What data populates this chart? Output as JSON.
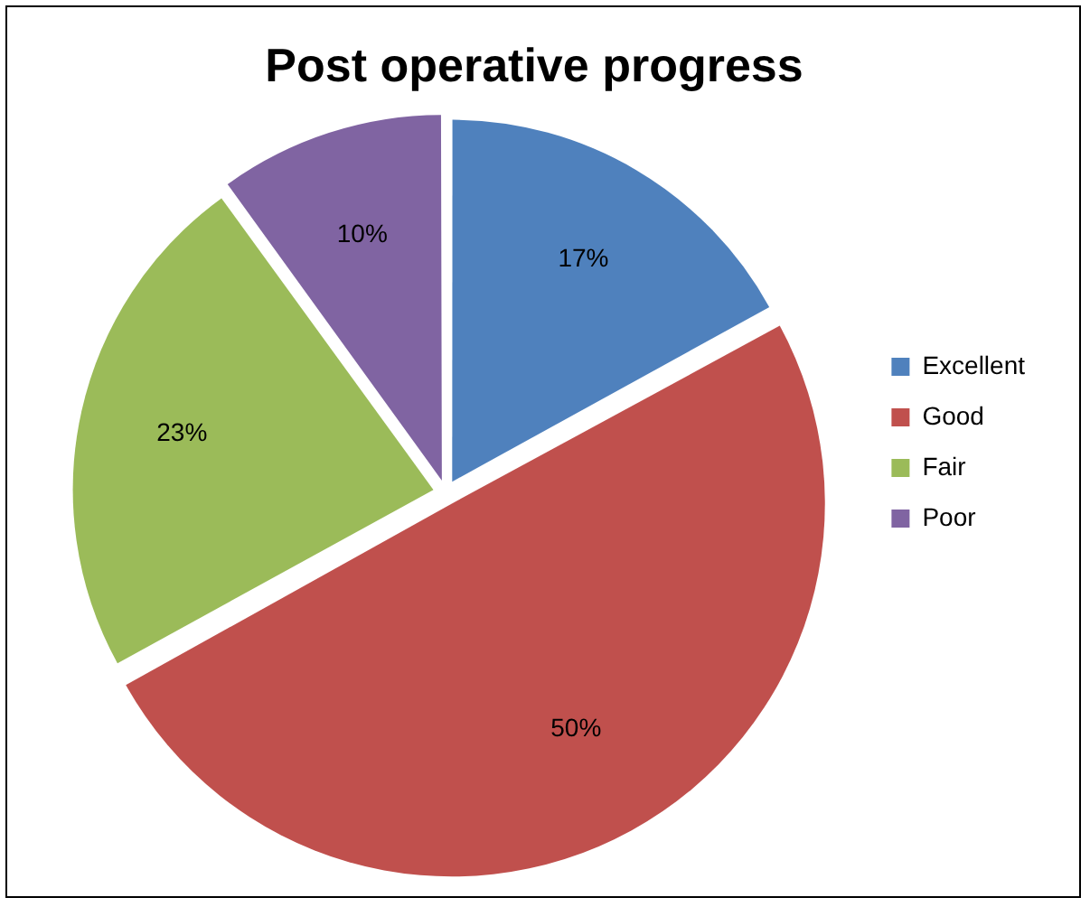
{
  "chart_data": {
    "type": "pie",
    "title": "Post operative progress",
    "categories": [
      "Excellent",
      "Good",
      "Fair",
      "Poor"
    ],
    "values": [
      17,
      50,
      23,
      10
    ],
    "value_labels": [
      "17%",
      "50%",
      "23%",
      "10%"
    ],
    "colors": [
      "#4f81bd",
      "#c0504d",
      "#9bbb59",
      "#8064a2"
    ],
    "legend": "right"
  }
}
